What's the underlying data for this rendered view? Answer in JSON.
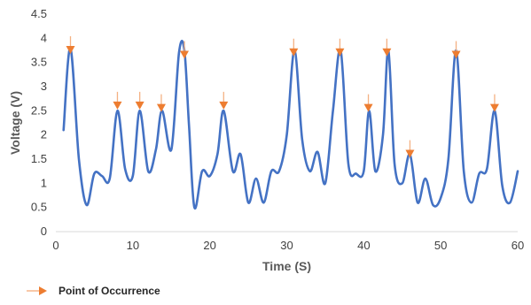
{
  "chart_data": {
    "type": "line",
    "title": "",
    "xlabel": "Time (S)",
    "ylabel": "Voltage (V)",
    "xlim": [
      0,
      60
    ],
    "ylim": [
      0,
      4.5
    ],
    "x_ticks": [
      0,
      10,
      20,
      30,
      40,
      50,
      60
    ],
    "y_ticks": [
      0,
      0.5,
      1,
      1.5,
      2,
      2.5,
      3,
      3.5,
      4,
      4.5
    ],
    "y_tick_labels": [
      "0",
      "0.5",
      "1",
      "1.5",
      "2",
      "2.5",
      "3",
      "3.5",
      "4",
      "4.5"
    ],
    "grid": false,
    "legend_position": "bottom-left",
    "series": [
      {
        "color": "#4472C4",
        "x": [
          1,
          1.9,
          3,
          4,
          5,
          6,
          7,
          8,
          9,
          10,
          10.9,
          12,
          13,
          13.8,
          15,
          16,
          16.7,
          17.3,
          18,
          19,
          20,
          21,
          21.8,
          23,
          24,
          25,
          26,
          27,
          28,
          29,
          30,
          31,
          32,
          33,
          34,
          35,
          36,
          37,
          38,
          39,
          40,
          40.7,
          41.5,
          42.5,
          43.2,
          44,
          45,
          46,
          47,
          48,
          49,
          50,
          51,
          52,
          53,
          54,
          55,
          56,
          57,
          58,
          59,
          60
        ],
        "values": [
          2.1,
          3.8,
          1.5,
          0.55,
          1.2,
          1.15,
          1.1,
          2.5,
          1.3,
          1.15,
          2.5,
          1.25,
          1.7,
          2.5,
          1.7,
          3.7,
          3.75,
          2.2,
          0.5,
          1.25,
          1.15,
          1.6,
          2.5,
          1.25,
          1.6,
          0.6,
          1.1,
          0.6,
          1.25,
          1.25,
          2.0,
          3.75,
          1.9,
          1.25,
          1.65,
          1.0,
          2.5,
          3.75,
          1.4,
          1.2,
          1.25,
          2.5,
          1.25,
          2.0,
          3.75,
          1.4,
          1.0,
          1.6,
          0.6,
          1.1,
          0.55,
          0.7,
          1.5,
          3.75,
          1.25,
          0.6,
          1.2,
          1.3,
          2.5,
          0.95,
          0.6,
          1.25
        ]
      }
    ],
    "markers": {
      "name": "Point of Occurrence",
      "color": "#ED7D31",
      "points": [
        {
          "x": 1.9,
          "y": 3.75
        },
        {
          "x": 8,
          "y": 2.6
        },
        {
          "x": 10.9,
          "y": 2.6
        },
        {
          "x": 13.7,
          "y": 2.55
        },
        {
          "x": 16.7,
          "y": 3.65
        },
        {
          "x": 21.8,
          "y": 2.6
        },
        {
          "x": 30.9,
          "y": 3.7
        },
        {
          "x": 36.9,
          "y": 3.7
        },
        {
          "x": 40.6,
          "y": 2.55
        },
        {
          "x": 43,
          "y": 3.7
        },
        {
          "x": 46,
          "y": 1.6
        },
        {
          "x": 52,
          "y": 3.65
        },
        {
          "x": 57,
          "y": 2.55
        }
      ]
    }
  }
}
